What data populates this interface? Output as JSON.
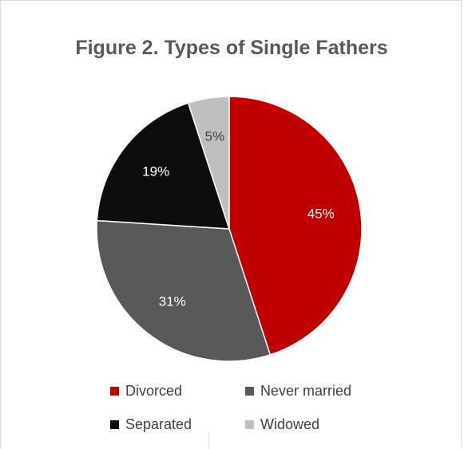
{
  "chart_data": {
    "type": "pie",
    "title": "Figure 2. Types of Single Fathers",
    "categories": [
      "Divorced",
      "Never married",
      "Separated",
      "Widowed"
    ],
    "values": [
      45,
      31,
      19,
      5
    ],
    "labels": [
      "45%",
      "31%",
      "19%",
      "5%"
    ],
    "colors": [
      "#c00000",
      "#595959",
      "#0d0d0d",
      "#bfbfbf"
    ],
    "label_colors": [
      "#ffffff",
      "#ffffff",
      "#ffffff",
      "#404040"
    ],
    "legend_position": "bottom"
  }
}
